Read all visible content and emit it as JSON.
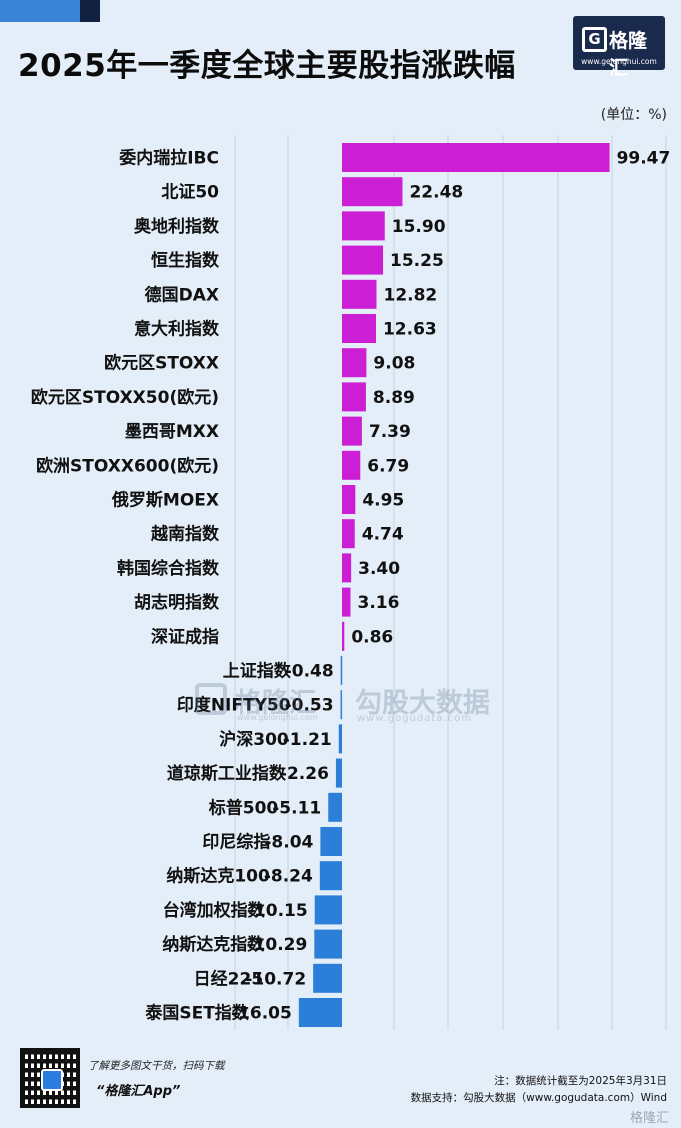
{
  "title": "2025年一季度全球主要股指涨跌幅",
  "unit": "(单位：%)",
  "logo": {
    "icon": "G",
    "name": "格隆汇",
    "url": "www.gelonghui.com"
  },
  "watermark": {
    "brand": "格隆汇",
    "brand_url": "www.gelonghui.com",
    "source": "勾股大数据",
    "source_url": "www.gogudata.com"
  },
  "colors": {
    "positive": "#cc1ed4",
    "negative": "#2b7fd9",
    "background": "#e4eef8",
    "grid": "#c6d1dc"
  },
  "chart_data": {
    "type": "bar",
    "orientation": "horizontal",
    "categories": [
      "委内瑞拉IBC",
      "北证50",
      "奥地利指数",
      "恒生指数",
      "德国DAX",
      "意大利指数",
      "欧元区STOXX",
      "欧元区STOXX50(欧元)",
      "墨西哥MXX",
      "欧洲STOXX600(欧元)",
      "俄罗斯MOEX",
      "越南指数",
      "韩国综合指数",
      "胡志明指数",
      "深证成指",
      "上证指数",
      "印度NIFTY50",
      "沪深300",
      "道琼斯工业指数",
      "标普500",
      "印尼综指",
      "纳斯达克100",
      "台湾加权指数",
      "纳斯达克指数",
      "日经225",
      "泰国SET指数"
    ],
    "values": [
      99.47,
      22.48,
      15.9,
      15.25,
      12.82,
      12.63,
      9.08,
      8.89,
      7.39,
      6.79,
      4.95,
      4.74,
      3.4,
      3.16,
      0.86,
      -0.48,
      -0.53,
      -1.21,
      -2.26,
      -5.11,
      -8.04,
      -8.24,
      -10.15,
      -10.29,
      -10.72,
      -16.05
    ],
    "value_labels": [
      "99.47",
      "22.48",
      "15.90",
      "15.25",
      "12.82",
      "12.63",
      "9.08",
      "8.89",
      "7.39",
      "6.79",
      "4.95",
      "4.74",
      "3.40",
      "3.16",
      "0.86",
      "-0.48",
      "-0.53",
      "-1.21",
      "-2.26",
      "-5.11",
      "-8.04",
      "-8.24",
      "-10.15",
      "-10.29",
      "-10.72",
      "-16.05"
    ],
    "xlim": [
      -16.05,
      99.47
    ],
    "grid": true
  },
  "footer": {
    "cta": "了解更多图文干货，扫码下载",
    "app": "“格隆汇App”",
    "note_line1": "注：数据统计截至为2025年3月31日",
    "note_line2": "数据支持：勾股大数据（www.gogudata.com）Wind",
    "mark": "格隆汇"
  }
}
